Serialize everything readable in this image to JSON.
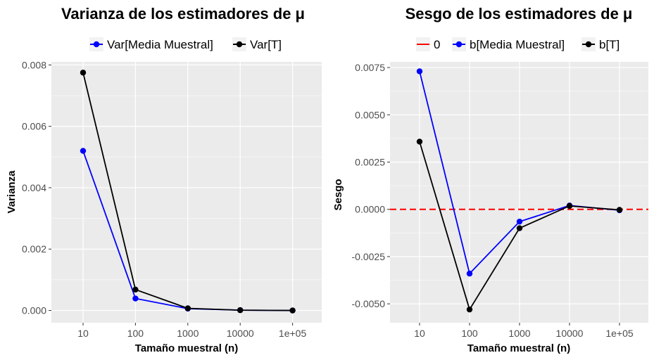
{
  "chart_data": [
    {
      "type": "line",
      "title": "Varianza de los estimadores de μ",
      "xlabel": "Tamaño muestral (n)",
      "ylabel": "Varianza",
      "categories": [
        "10",
        "100",
        "1000",
        "10000",
        "1e+05"
      ],
      "yticks": [
        "0.000",
        "0.002",
        "0.004",
        "0.006",
        "0.008"
      ],
      "ylim": [
        -0.0004,
        0.0081
      ],
      "legend_position": "top",
      "grid": true,
      "series": [
        {
          "name": "Var[Media Muestral]",
          "color": "#0000ff",
          "values": [
            0.0052,
            0.00039,
            6e-05,
            1e-05,
            0.0
          ]
        },
        {
          "name": "Var[T]",
          "color": "#000000",
          "values": [
            0.00775,
            0.00068,
            7e-05,
            1e-05,
            0.0
          ]
        }
      ]
    },
    {
      "type": "line",
      "title": "Sesgo de los estimadores de μ",
      "xlabel": "Tamaño muestral (n)",
      "ylabel": "Sesgo",
      "categories": [
        "10",
        "100",
        "1000",
        "10000",
        "1e+05"
      ],
      "yticks": [
        "-0.0050",
        "-0.0025",
        "0.0000",
        "0.0025",
        "0.0050",
        "0.0075"
      ],
      "ylim": [
        -0.006,
        0.0078
      ],
      "legend_position": "top",
      "grid": true,
      "reference_line": {
        "name": "0",
        "value": 0,
        "color": "#ff0000",
        "style": "dashed"
      },
      "series": [
        {
          "name": "b[Media Muestral]",
          "color": "#0000ff",
          "values": [
            0.0073,
            -0.0034,
            -0.00065,
            0.0002,
            -5e-05
          ]
        },
        {
          "name": "b[T]",
          "color": "#000000",
          "values": [
            0.00358,
            -0.0053,
            -0.001,
            0.00018,
            -3e-05
          ]
        }
      ]
    }
  ]
}
